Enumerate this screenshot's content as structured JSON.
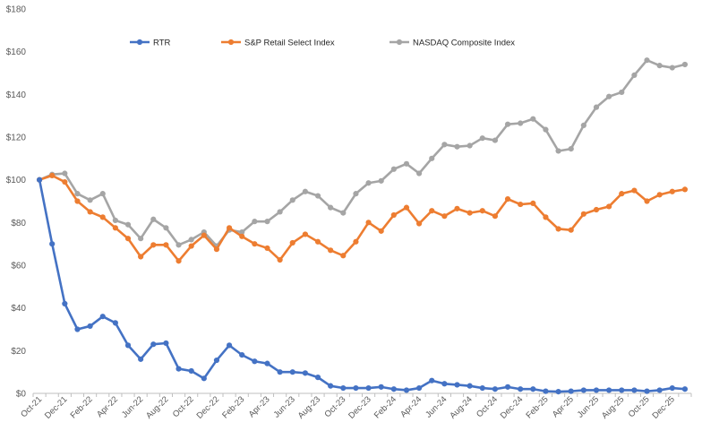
{
  "chart_data": {
    "type": "line",
    "title": "",
    "xlabel": "",
    "ylabel": "",
    "ylim": [
      0,
      180
    ],
    "y_ticks": [
      "$0",
      "$20",
      "$40",
      "$60",
      "$80",
      "$100",
      "$120",
      "$140",
      "$160",
      "$180"
    ],
    "grid": false,
    "legend_position": "top",
    "x": [
      "Oct-21",
      "Nov-21",
      "Dec-21",
      "Jan-22",
      "Feb-22",
      "Mar-22",
      "Apr-22",
      "May-22",
      "Jun-22",
      "Jul-22",
      "Aug-22",
      "Sep-22",
      "Oct-22",
      "Nov-22",
      "Dec-22",
      "Jan-23",
      "Feb-23",
      "Mar-23",
      "Apr-23",
      "May-23",
      "Jun-23",
      "Jul-23",
      "Aug-23",
      "Sep-23",
      "Oct-23",
      "Nov-23",
      "Dec-23",
      "Jan-24",
      "Feb-24",
      "Mar-24",
      "Apr-24",
      "May-24",
      "Jun-24",
      "Jul-24",
      "Aug-24",
      "Sep-24",
      "Oct-24",
      "Nov-24",
      "Dec-24",
      "Jan-25",
      "Feb-25",
      "Mar-25",
      "Apr-25",
      "May-25",
      "Jun-25",
      "Jul-25",
      "Aug-25",
      "Sep-25",
      "Oct-25",
      "Nov-25",
      "Dec-25",
      "Jan-26"
    ],
    "x_tick_labels": [
      "Oct-21",
      "Dec-21",
      "Feb-22",
      "Apr-22",
      "Jun-22",
      "Aug-22",
      "Oct-22",
      "Dec-22",
      "Feb-23",
      "Apr-23",
      "Jun-23",
      "Aug-23",
      "Oct-23",
      "Dec-23",
      "Feb-24",
      "Apr-24",
      "Jun-24",
      "Aug-24",
      "Oct-24",
      "Dec-24",
      "Feb-25",
      "Apr-25",
      "Jun-25",
      "Aug-25",
      "Oct-25",
      "Dec-25"
    ],
    "series": [
      {
        "name": "RTR",
        "color": "#4472C4",
        "values": [
          100,
          70,
          42,
          30,
          31.5,
          36,
          33,
          22.5,
          16,
          23,
          23.5,
          11.5,
          10.5,
          7,
          15.5,
          22.5,
          18,
          15,
          14,
          10,
          10,
          9.5,
          7.5,
          3.5,
          2.5,
          2.5,
          2.5,
          3,
          2,
          1.5,
          2.5,
          6,
          4.5,
          4,
          3.5,
          2.5,
          2,
          3,
          2,
          2,
          1,
          0.8,
          1,
          1.5,
          1.5,
          1.5,
          1.5,
          1.5,
          1,
          1.5,
          2.5,
          2
        ]
      },
      {
        "name": "S&P Retail Select Index",
        "color": "#ED7D31",
        "values": [
          100,
          102,
          99,
          90,
          85,
          82.5,
          77.5,
          72.5,
          64,
          69.5,
          69.5,
          62,
          69,
          74,
          67.5,
          77.5,
          73.5,
          70,
          68,
          62.5,
          70.5,
          74.5,
          71,
          67,
          64.5,
          71,
          80,
          76,
          83.5,
          87,
          79.5,
          85.5,
          83,
          86.5,
          84.5,
          85.5,
          83,
          91,
          88.5,
          89,
          82.5,
          77,
          76.5,
          84,
          86,
          87.5,
          93.5,
          95,
          90,
          93,
          94.5,
          95.5
        ]
      },
      {
        "name": "NASDAQ Composite Index",
        "color": "#A5A5A5",
        "values": [
          100,
          102.5,
          103,
          93.5,
          90.5,
          93.5,
          81,
          79,
          72.5,
          81.5,
          77.5,
          69.5,
          72,
          75.5,
          69,
          76.5,
          75.5,
          80.5,
          80.5,
          85,
          90.5,
          94.5,
          92.5,
          87,
          84.5,
          93.5,
          98.5,
          99.5,
          105,
          107.5,
          103,
          110,
          116.5,
          115.5,
          116,
          119.5,
          118.5,
          126,
          126.5,
          128.5,
          123.5,
          113.5,
          114.5,
          125.5,
          134,
          139,
          141,
          149,
          156,
          153.5,
          152.5,
          154
        ]
      }
    ]
  }
}
